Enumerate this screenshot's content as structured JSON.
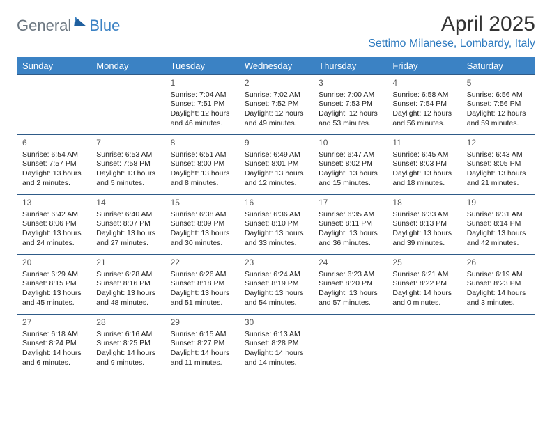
{
  "logo": {
    "part1": "General",
    "part2": "Blue"
  },
  "title": "April 2025",
  "location": "Settimo Milanese, Lombardy, Italy",
  "colors": {
    "header_bg": "#3b82c4",
    "header_text": "#ffffff",
    "border": "#2f5b88",
    "logo_gray": "#6b7680",
    "logo_blue": "#3b82c4",
    "location_color": "#2f7bbf"
  },
  "weekdays": [
    "Sunday",
    "Monday",
    "Tuesday",
    "Wednesday",
    "Thursday",
    "Friday",
    "Saturday"
  ],
  "weeks": [
    [
      null,
      null,
      {
        "n": "1",
        "sr": "Sunrise: 7:04 AM",
        "ss": "Sunset: 7:51 PM",
        "d1": "Daylight: 12 hours",
        "d2": "and 46 minutes."
      },
      {
        "n": "2",
        "sr": "Sunrise: 7:02 AM",
        "ss": "Sunset: 7:52 PM",
        "d1": "Daylight: 12 hours",
        "d2": "and 49 minutes."
      },
      {
        "n": "3",
        "sr": "Sunrise: 7:00 AM",
        "ss": "Sunset: 7:53 PM",
        "d1": "Daylight: 12 hours",
        "d2": "and 53 minutes."
      },
      {
        "n": "4",
        "sr": "Sunrise: 6:58 AM",
        "ss": "Sunset: 7:54 PM",
        "d1": "Daylight: 12 hours",
        "d2": "and 56 minutes."
      },
      {
        "n": "5",
        "sr": "Sunrise: 6:56 AM",
        "ss": "Sunset: 7:56 PM",
        "d1": "Daylight: 12 hours",
        "d2": "and 59 minutes."
      }
    ],
    [
      {
        "n": "6",
        "sr": "Sunrise: 6:54 AM",
        "ss": "Sunset: 7:57 PM",
        "d1": "Daylight: 13 hours",
        "d2": "and 2 minutes."
      },
      {
        "n": "7",
        "sr": "Sunrise: 6:53 AM",
        "ss": "Sunset: 7:58 PM",
        "d1": "Daylight: 13 hours",
        "d2": "and 5 minutes."
      },
      {
        "n": "8",
        "sr": "Sunrise: 6:51 AM",
        "ss": "Sunset: 8:00 PM",
        "d1": "Daylight: 13 hours",
        "d2": "and 8 minutes."
      },
      {
        "n": "9",
        "sr": "Sunrise: 6:49 AM",
        "ss": "Sunset: 8:01 PM",
        "d1": "Daylight: 13 hours",
        "d2": "and 12 minutes."
      },
      {
        "n": "10",
        "sr": "Sunrise: 6:47 AM",
        "ss": "Sunset: 8:02 PM",
        "d1": "Daylight: 13 hours",
        "d2": "and 15 minutes."
      },
      {
        "n": "11",
        "sr": "Sunrise: 6:45 AM",
        "ss": "Sunset: 8:03 PM",
        "d1": "Daylight: 13 hours",
        "d2": "and 18 minutes."
      },
      {
        "n": "12",
        "sr": "Sunrise: 6:43 AM",
        "ss": "Sunset: 8:05 PM",
        "d1": "Daylight: 13 hours",
        "d2": "and 21 minutes."
      }
    ],
    [
      {
        "n": "13",
        "sr": "Sunrise: 6:42 AM",
        "ss": "Sunset: 8:06 PM",
        "d1": "Daylight: 13 hours",
        "d2": "and 24 minutes."
      },
      {
        "n": "14",
        "sr": "Sunrise: 6:40 AM",
        "ss": "Sunset: 8:07 PM",
        "d1": "Daylight: 13 hours",
        "d2": "and 27 minutes."
      },
      {
        "n": "15",
        "sr": "Sunrise: 6:38 AM",
        "ss": "Sunset: 8:09 PM",
        "d1": "Daylight: 13 hours",
        "d2": "and 30 minutes."
      },
      {
        "n": "16",
        "sr": "Sunrise: 6:36 AM",
        "ss": "Sunset: 8:10 PM",
        "d1": "Daylight: 13 hours",
        "d2": "and 33 minutes."
      },
      {
        "n": "17",
        "sr": "Sunrise: 6:35 AM",
        "ss": "Sunset: 8:11 PM",
        "d1": "Daylight: 13 hours",
        "d2": "and 36 minutes."
      },
      {
        "n": "18",
        "sr": "Sunrise: 6:33 AM",
        "ss": "Sunset: 8:13 PM",
        "d1": "Daylight: 13 hours",
        "d2": "and 39 minutes."
      },
      {
        "n": "19",
        "sr": "Sunrise: 6:31 AM",
        "ss": "Sunset: 8:14 PM",
        "d1": "Daylight: 13 hours",
        "d2": "and 42 minutes."
      }
    ],
    [
      {
        "n": "20",
        "sr": "Sunrise: 6:29 AM",
        "ss": "Sunset: 8:15 PM",
        "d1": "Daylight: 13 hours",
        "d2": "and 45 minutes."
      },
      {
        "n": "21",
        "sr": "Sunrise: 6:28 AM",
        "ss": "Sunset: 8:16 PM",
        "d1": "Daylight: 13 hours",
        "d2": "and 48 minutes."
      },
      {
        "n": "22",
        "sr": "Sunrise: 6:26 AM",
        "ss": "Sunset: 8:18 PM",
        "d1": "Daylight: 13 hours",
        "d2": "and 51 minutes."
      },
      {
        "n": "23",
        "sr": "Sunrise: 6:24 AM",
        "ss": "Sunset: 8:19 PM",
        "d1": "Daylight: 13 hours",
        "d2": "and 54 minutes."
      },
      {
        "n": "24",
        "sr": "Sunrise: 6:23 AM",
        "ss": "Sunset: 8:20 PM",
        "d1": "Daylight: 13 hours",
        "d2": "and 57 minutes."
      },
      {
        "n": "25",
        "sr": "Sunrise: 6:21 AM",
        "ss": "Sunset: 8:22 PM",
        "d1": "Daylight: 14 hours",
        "d2": "and 0 minutes."
      },
      {
        "n": "26",
        "sr": "Sunrise: 6:19 AM",
        "ss": "Sunset: 8:23 PM",
        "d1": "Daylight: 14 hours",
        "d2": "and 3 minutes."
      }
    ],
    [
      {
        "n": "27",
        "sr": "Sunrise: 6:18 AM",
        "ss": "Sunset: 8:24 PM",
        "d1": "Daylight: 14 hours",
        "d2": "and 6 minutes."
      },
      {
        "n": "28",
        "sr": "Sunrise: 6:16 AM",
        "ss": "Sunset: 8:25 PM",
        "d1": "Daylight: 14 hours",
        "d2": "and 9 minutes."
      },
      {
        "n": "29",
        "sr": "Sunrise: 6:15 AM",
        "ss": "Sunset: 8:27 PM",
        "d1": "Daylight: 14 hours",
        "d2": "and 11 minutes."
      },
      {
        "n": "30",
        "sr": "Sunrise: 6:13 AM",
        "ss": "Sunset: 8:28 PM",
        "d1": "Daylight: 14 hours",
        "d2": "and 14 minutes."
      },
      null,
      null,
      null
    ]
  ]
}
